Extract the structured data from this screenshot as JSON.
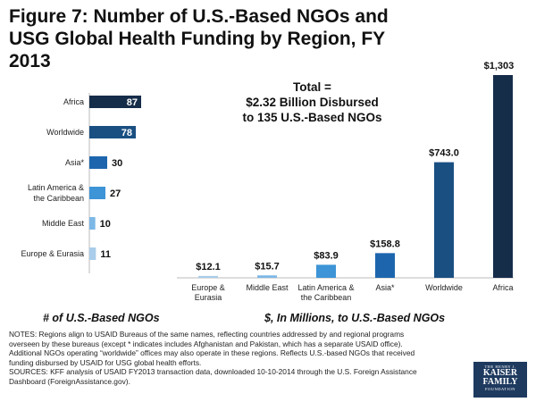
{
  "title": "Figure 7: Number of U.S.-Based NGOs and USG Global Health Funding by Region, FY 2013",
  "total": {
    "line1": "Total =",
    "line2": "$2.32 Billion Disbursed",
    "line3": "to 135 U.S.-Based NGOs"
  },
  "chart_data": [
    {
      "type": "bar",
      "orientation": "horizontal",
      "title": "# of U.S.-Based NGOs",
      "categories": [
        "Africa",
        "Worldwide",
        "Asia*",
        "Latin America & the Caribbean",
        "Middle East",
        "Europe & Eurasia"
      ],
      "category_lines": [
        [
          "Africa"
        ],
        [
          "Worldwide"
        ],
        [
          "Asia*"
        ],
        [
          "Latin America &",
          "the Caribbean"
        ],
        [
          "Middle East"
        ],
        [
          "Europe & Eurasia"
        ]
      ],
      "values": [
        87,
        78,
        30,
        27,
        10,
        11
      ],
      "labels": [
        "87",
        "78",
        "30",
        "27",
        "10",
        "11"
      ],
      "colors": [
        "#162d4a",
        "#1a4f82",
        "#1d66ad",
        "#3d94d6",
        "#7db8e6",
        "#a9cdea"
      ],
      "xlim": [
        0,
        90
      ]
    },
    {
      "type": "bar",
      "orientation": "vertical",
      "title": "$, In Millions, to U.S.-Based NGOs",
      "categories": [
        "Europe & Eurasia",
        "Middle East",
        "Latin America & the Caribbean",
        "Asia*",
        "Worldwide",
        "Africa"
      ],
      "category_lines": [
        [
          "Europe &",
          "Eurasia"
        ],
        [
          "Middle East"
        ],
        [
          "Latin America &",
          "the Caribbean"
        ],
        [
          "Asia*"
        ],
        [
          "Worldwide"
        ],
        [
          "Africa"
        ]
      ],
      "values": [
        12.1,
        15.7,
        83.9,
        158.8,
        743.0,
        1303.2
      ],
      "labels": [
        "$12.1",
        "$15.7",
        "$83.9",
        "$158.8",
        "$743.0",
        "$1,303.2"
      ],
      "colors": [
        "#a9cdea",
        "#7db8e6",
        "#3d94d6",
        "#1d66ad",
        "#1a4f82",
        "#162d4a"
      ],
      "ylim": [
        0,
        1303.2
      ]
    }
  ],
  "captions": {
    "left": "# of U.S.-Based NGOs",
    "right": "$, In Millions, to U.S.-Based NGOs"
  },
  "notes": {
    "line1": "NOTES: Regions align to USAID Bureaus of the same names, reflecting countries addressed by and regional programs overseen by these bureaus (except * indicates includes Afghanistan and Pakistan, which has a separate USAID office). Additional NGOs operating “worldwide” offices may also operate in these regions. Reflects U.S.-based NGOs that received funding disbursed by USAID for USG global health efforts.",
    "line2": "SOURCES: KFF analysis of USAID FY2013 transaction data, downloaded 10-10-2014 through the U.S. Foreign Assistance Dashboard (ForeignAssistance.gov)."
  },
  "logo": {
    "line1": "THE HENRY J.",
    "line2": "KAISER",
    "line3": "FAMILY",
    "line4": "FOUNDATION"
  }
}
